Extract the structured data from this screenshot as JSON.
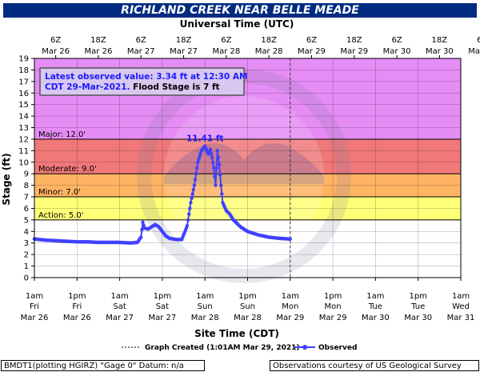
{
  "title": "RICHLAND CREEK NEAR BELLE MEADE",
  "top_axis_title": "Universal Time (UTC)",
  "top_ticks": [
    {
      "day": "Mar 26",
      "time": "6Z",
      "h": 6
    },
    {
      "day": "Mar 26",
      "time": "18Z",
      "h": 18
    },
    {
      "day": "Mar 27",
      "time": "6Z",
      "h": 30
    },
    {
      "day": "Mar 27",
      "time": "18Z",
      "h": 42
    },
    {
      "day": "Mar 28",
      "time": "6Z",
      "h": 54
    },
    {
      "day": "Mar 28",
      "time": "18Z",
      "h": 66
    },
    {
      "day": "Mar 29",
      "time": "6Z",
      "h": 78
    },
    {
      "day": "Mar 29",
      "time": "18Z",
      "h": 90
    },
    {
      "day": "Mar 30",
      "time": "6Z",
      "h": 102
    },
    {
      "day": "Mar 30",
      "time": "18Z",
      "h": 114
    },
    {
      "day": "Mar 31",
      "time": "6Z",
      "h": 126
    }
  ],
  "bottom_ticks": [
    {
      "time": "1am",
      "dow": "Fri",
      "date": "Mar 26",
      "h": 0
    },
    {
      "time": "1pm",
      "dow": "Fri",
      "date": "Mar 26",
      "h": 12
    },
    {
      "time": "1am",
      "dow": "Sat",
      "date": "Mar 27",
      "h": 24
    },
    {
      "time": "1pm",
      "dow": "Sat",
      "date": "Mar 27",
      "h": 36
    },
    {
      "time": "1am",
      "dow": "Sun",
      "date": "Mar 28",
      "h": 48
    },
    {
      "time": "1pm",
      "dow": "Sun",
      "date": "Mar 28",
      "h": 60
    },
    {
      "time": "1am",
      "dow": "Mon",
      "date": "Mar 29",
      "h": 72
    },
    {
      "time": "1pm",
      "dow": "Mon",
      "date": "Mar 29",
      "h": 84
    },
    {
      "time": "1am",
      "dow": "Tue",
      "date": "Mar 30",
      "h": 96
    },
    {
      "time": "1pm",
      "dow": "Tue",
      "date": "Mar 30",
      "h": 108
    },
    {
      "time": "1am",
      "dow": "Wed",
      "date": "Mar 31",
      "h": 120
    }
  ],
  "x_axis_title": "Site Time (CDT)",
  "y_axis_title": "Stage (ft)",
  "info_box": {
    "line1": "Latest observed value: 3.34 ft at 12:30 AM",
    "line2_blue": "CDT 29-Mar-2021.",
    "line2_black": "Flood Stage is 7 ft"
  },
  "thresholds": [
    {
      "label": "Major: 12.0'",
      "from": 12,
      "to": 19,
      "color": "#E58CF5"
    },
    {
      "label": "Moderate: 9.0'",
      "from": 9,
      "to": 12,
      "color": "#F07878"
    },
    {
      "label": "Minor: 7.0'",
      "from": 7,
      "to": 9,
      "color": "#FFB464"
    },
    {
      "label": "Action: 5.0'",
      "from": 5,
      "to": 7,
      "color": "#FFFF78"
    }
  ],
  "peak_label": "11.41 ft",
  "legend": {
    "graph_created": "Graph Created (1:01AM Mar 29, 2021)",
    "observed": "Observed"
  },
  "footer": {
    "left": "BMDT1(plotting HGIRZ) \"Gage 0\" Datum: n/a",
    "right": "Observations courtesy of US Geological Survey"
  },
  "colors": {
    "title_bg": "#002B80",
    "observed": "#4040FF",
    "info_border": "#555555",
    "info_bg": "#D8C8F0"
  },
  "chart_data": {
    "type": "line",
    "title": "RICHLAND CREEK NEAR BELLE MEADE",
    "xlabel": "Site Time (CDT)",
    "ylabel": "Stage (ft)",
    "x_units": "hours after 1am CDT Mar 26",
    "xlim": [
      0,
      120
    ],
    "ylim": [
      0,
      19
    ],
    "graph_created_x": 72,
    "series": [
      {
        "name": "Observed",
        "x": [
          0,
          3,
          6,
          9,
          12,
          15,
          18,
          21,
          24,
          27,
          29,
          30,
          30.5,
          31,
          32,
          33,
          34,
          35,
          36,
          37,
          38,
          40,
          41.5,
          43,
          44,
          45,
          46,
          47,
          48,
          48.5,
          49,
          49.5,
          50,
          50.5,
          51,
          51.5,
          52,
          52.5,
          53,
          54,
          55,
          56,
          57,
          58,
          60,
          63,
          66,
          69,
          72
        ],
        "values": [
          3.35,
          3.25,
          3.2,
          3.15,
          3.1,
          3.1,
          3.05,
          3.05,
          3.05,
          3.0,
          3.05,
          3.5,
          4.8,
          4.3,
          4.2,
          4.4,
          4.6,
          4.4,
          4.0,
          3.6,
          3.4,
          3.3,
          3.3,
          4.5,
          6.5,
          8.0,
          10.0,
          11.0,
          11.41,
          11.0,
          10.7,
          11.1,
          10.4,
          9.5,
          8.0,
          11.0,
          9.8,
          8.0,
          6.5,
          5.8,
          5.5,
          5.0,
          4.7,
          4.4,
          4.0,
          3.7,
          3.5,
          3.4,
          3.34
        ]
      }
    ]
  }
}
